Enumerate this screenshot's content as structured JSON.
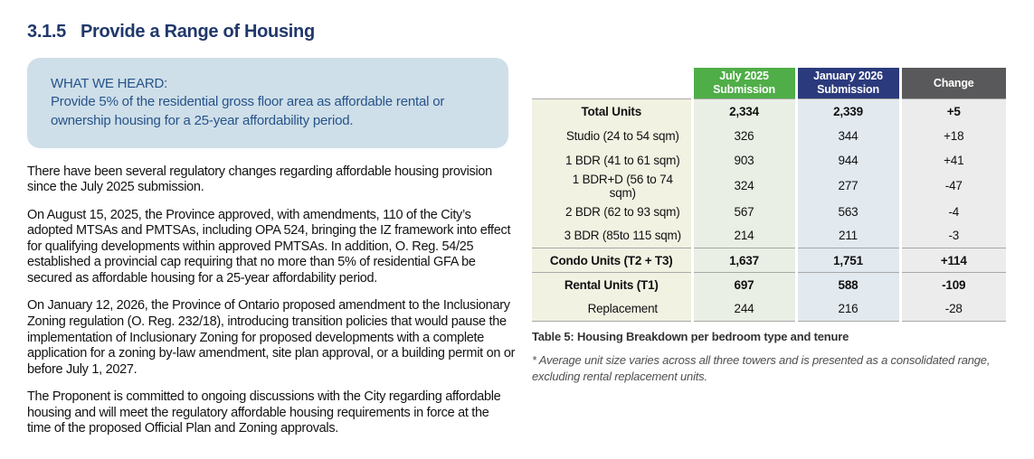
{
  "colors": {
    "heading_navy": "#20386B",
    "callout_bg": "#CEDFE9",
    "callout_text": "#27538A",
    "header_green": "#4FAE47",
    "header_navy": "#2B3A7C",
    "header_gray": "#59595B",
    "label_col_bg": "#F2F2E3",
    "july_col_bg": "#E9EFE4",
    "january_col_bg": "#E2E9EF",
    "change_col_bg": "#ECECED"
  },
  "heading": {
    "number": "3.1.5",
    "title": "Provide a Range of Housing"
  },
  "callout": {
    "title": "WHAT WE HEARD:",
    "body": "Provide 5% of the residential gross floor area as affordable rental or ownership housing for a 25-year affordability period."
  },
  "paragraphs": [
    "There have been several regulatory changes regarding affordable housing provision since the July 2025 submission.",
    "On August 15, 2025, the Province approved, with amendments, 110 of the City’s adopted MTSAs and PMTSAs, including OPA 524, bringing the IZ framework into effect for qualifying developments within approved PMTSAs. In addition, O. Reg. 54/25 established a provincial cap requiring that no more than 5% of residential GFA be secured as affordable housing for a 25-year affordability period.",
    "On January 12, 2026, the Province of Ontario proposed amendment to the Inclusionary Zoning regulation (O. Reg. 232/18), introducing transition policies that would pause the implementation of Inclusionary Zoning for proposed developments with a complete application for a zoning by-law amendment, site plan approval, or a building permit on or before July 1, 2027.",
    "The Proponent is committed to ongoing discussions with the City regarding affordable housing and will meet the regulatory affordable housing requirements in force at the time of the proposed Official Plan and Zoning approvals."
  ],
  "table": {
    "col_headers": [
      "July 2025 Submission",
      "January 2026 Submission",
      "Change"
    ],
    "rows": [
      {
        "label": "Total Units",
        "july": "2,334",
        "january": "2,339",
        "change": "+5"
      },
      {
        "label": "Studio (24 to 54 sqm)",
        "july": "326",
        "january": "344",
        "change": "+18"
      },
      {
        "label": "1 BDR (41 to 61 sqm)",
        "july": "903",
        "january": "944",
        "change": "+41"
      },
      {
        "label": "1 BDR+D (56 to 74 sqm)",
        "july": "324",
        "january": "277",
        "change": "-47"
      },
      {
        "label": "2 BDR (62 to 93 sqm)",
        "july": "567",
        "january": "563",
        "change": "-4"
      },
      {
        "label": "3 BDR (85to 115 sqm)",
        "july": "214",
        "january": "211",
        "change": "-3"
      },
      {
        "label": "Condo Units (T2 + T3)",
        "july": "1,637",
        "january": "1,751",
        "change": "+114"
      },
      {
        "label": "Rental Units (T1)",
        "july": "697",
        "january": "588",
        "change": "-109"
      },
      {
        "label": "Replacement",
        "july": "244",
        "january": "216",
        "change": "-28"
      }
    ],
    "caption": "Table 5: Housing Breakdown per bedroom type and tenure",
    "footnote": "* Average unit size varies across all three towers and is presented as a consolidated range, excluding rental replacement units."
  }
}
